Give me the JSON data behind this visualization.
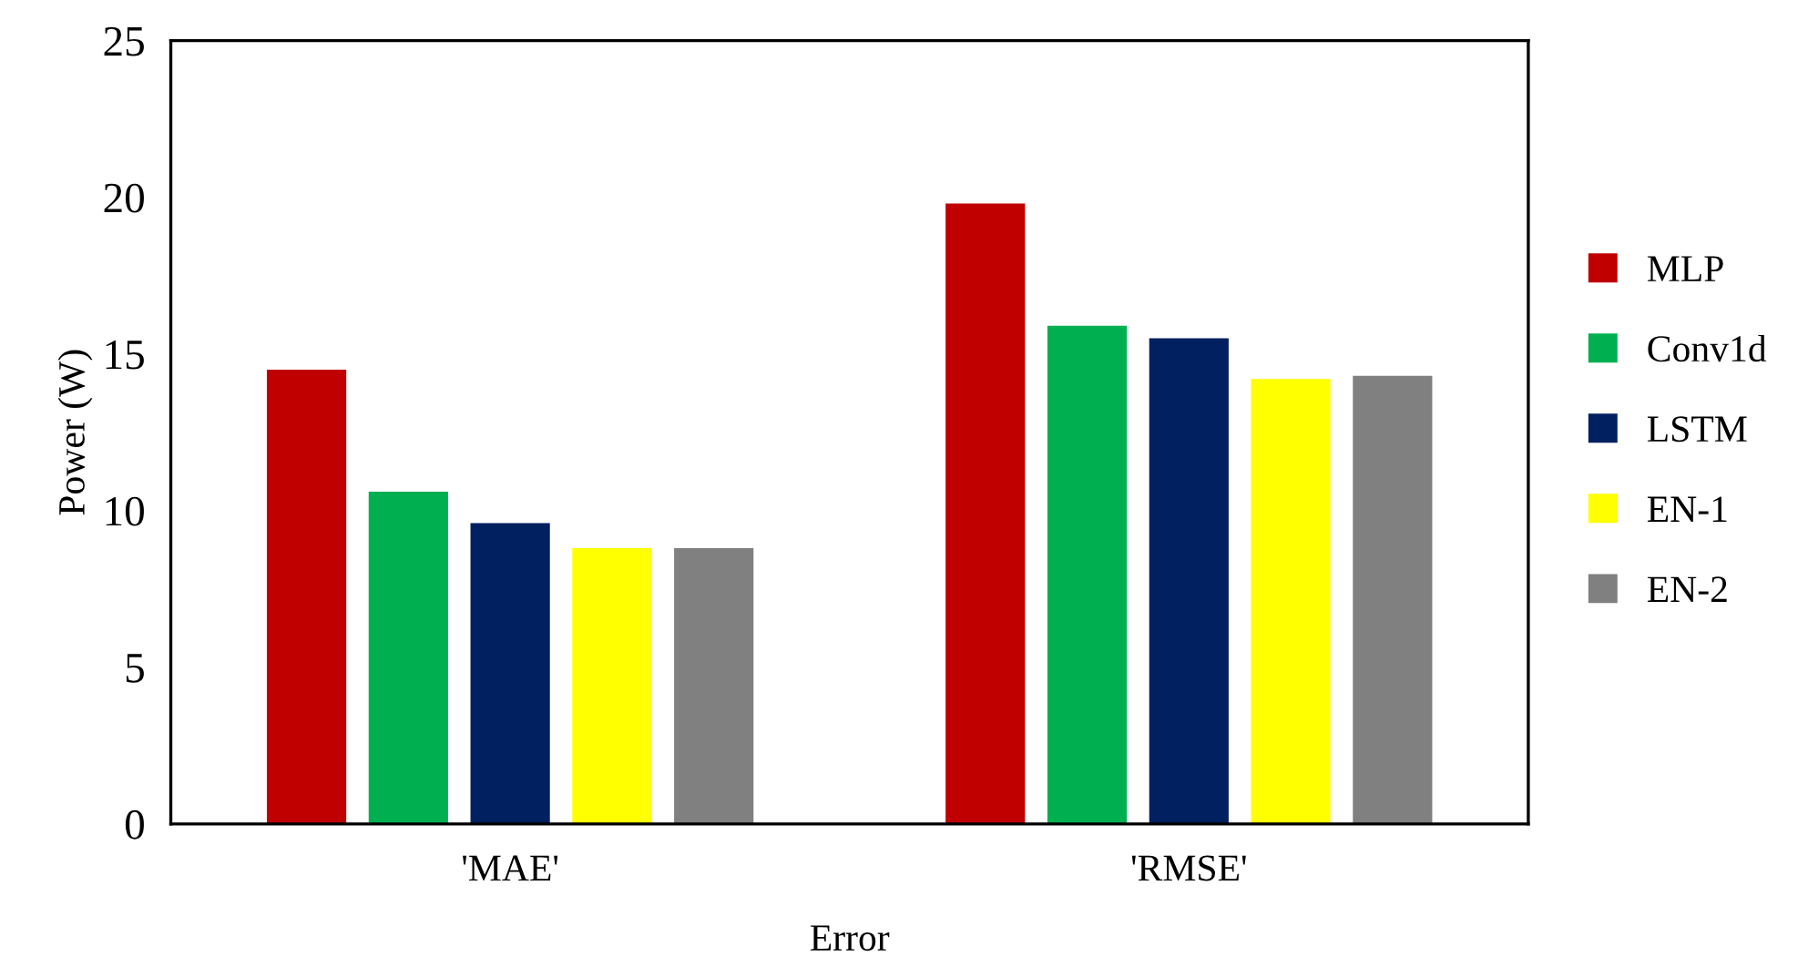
{
  "chart_data": {
    "type": "bar",
    "xlabel": "Error",
    "ylabel": "Power (W)",
    "categories": [
      "'MAE'",
      "'RMSE'"
    ],
    "series": [
      {
        "name": "MLP",
        "color": "#c00000",
        "values": [
          14.5,
          19.8
        ]
      },
      {
        "name": "Conv1d",
        "color": "#00b050",
        "values": [
          10.6,
          15.9
        ]
      },
      {
        "name": "LSTM",
        "color": "#002060",
        "values": [
          9.6,
          15.5
        ]
      },
      {
        "name": "EN-1",
        "color": "#ffff00",
        "values": [
          8.8,
          14.2
        ]
      },
      {
        "name": "EN-2",
        "color": "#808080",
        "values": [
          8.8,
          14.3
        ]
      }
    ],
    "ylim": [
      0,
      25
    ],
    "yticks": [
      0,
      5,
      10,
      15,
      20,
      25
    ],
    "grid": false,
    "legend": "right"
  }
}
